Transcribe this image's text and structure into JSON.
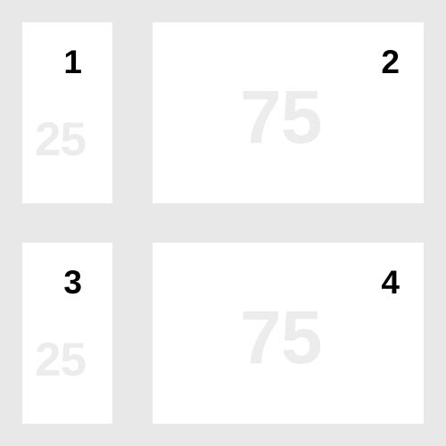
{
  "panels": [
    {
      "number": "1",
      "width_label": "25"
    },
    {
      "number": "2",
      "width_label": "75"
    },
    {
      "number": "3",
      "width_label": "25"
    },
    {
      "number": "4",
      "width_label": "75"
    }
  ],
  "colors": {
    "page_background": "#e8e8e8",
    "panel_background": "#ffffff",
    "number_text": "#000000",
    "width_label_text": "#ececec"
  }
}
